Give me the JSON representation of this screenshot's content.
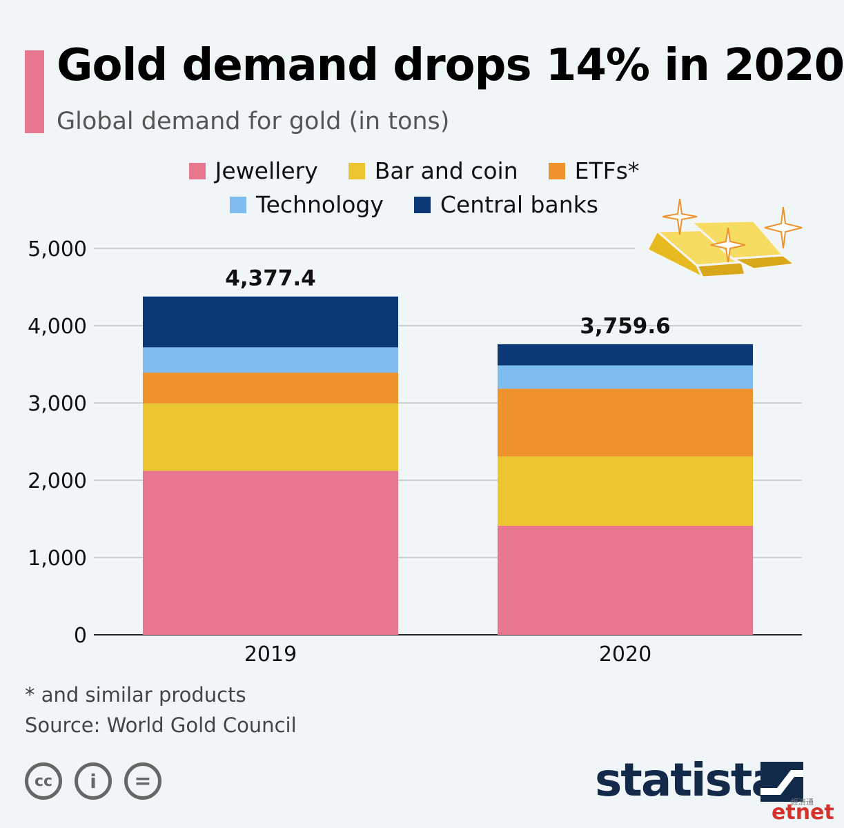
{
  "header": {
    "title": "Gold demand drops 14% in 2020",
    "subtitle": "Global demand for gold (in tons)"
  },
  "chart_data": {
    "type": "bar",
    "stacked": true,
    "title": "Gold demand drops 14% in 2020",
    "subtitle": "Global demand for gold (in tons)",
    "categories": [
      "2019",
      "2020"
    ],
    "series": [
      {
        "name": "Jewellery",
        "values": [
          2122,
          1411
        ],
        "color": "#e8768f"
      },
      {
        "name": "Bar and coin",
        "values": [
          873,
          896
        ],
        "color": "#ebc52f"
      },
      {
        "name": "ETFs*",
        "values": [
          398,
          877
        ],
        "color": "#ef922e"
      },
      {
        "name": "Technology",
        "values": [
          327,
          302
        ],
        "color": "#7fbcef"
      },
      {
        "name": "Central banks",
        "values": [
          657.4,
          273.6
        ],
        "color": "#0c3878"
      }
    ],
    "totals": [
      "4,377.4",
      "3,759.6"
    ],
    "y_ticks": [
      "0",
      "1,000",
      "2,000",
      "3,000",
      "4,000",
      "5,000"
    ],
    "ylim": [
      0,
      5000
    ],
    "xlabel": "",
    "ylabel": "",
    "grid": true,
    "legend_position": "top"
  },
  "footer": {
    "footnote": "* and similar products",
    "source": "Source: World Gold Council"
  },
  "license_icons": [
    {
      "name": "cc-icon",
      "glyph": "cc"
    },
    {
      "name": "by-person-icon",
      "glyph": "i"
    },
    {
      "name": "nd-equals-icon",
      "glyph": "="
    }
  ],
  "brand": {
    "name": "statista"
  },
  "watermark": {
    "text": "etnet",
    "chinese": "經濟通"
  },
  "colors": {
    "accent": "#e8768f",
    "brand": "#12294a",
    "gridline": "#b5b9bc",
    "background": "#f0f5f8"
  }
}
